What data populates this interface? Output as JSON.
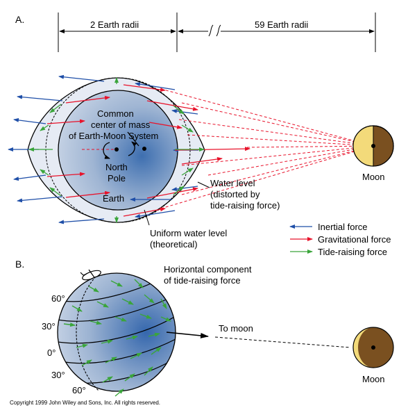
{
  "panel_a": {
    "label": "A.",
    "dim_earth": "2 Earth radii",
    "dim_moon": "59 Earth radii",
    "break_mark": "ʃ ʃ",
    "com_line1": "Common",
    "com_line2": "center of mass",
    "com_line3": "of Earth-Moon System",
    "north_line1": "North",
    "north_line2": "Pole",
    "earth": "Earth",
    "moon": "Moon",
    "water_line1": "Water level",
    "water_line2": "(distorted by",
    "water_line3": "tide-raising force)",
    "uniform_line1": "Uniform water level",
    "uniform_line2": "(theoretical)"
  },
  "legend": {
    "inertial": "Inertial force",
    "gravitational": "Gravitational force",
    "tide": "Tide-raising force"
  },
  "panel_b": {
    "label": "B.",
    "horiz_line1": "Horizontal component",
    "horiz_line2": "of tide-raising force",
    "to_moon": "To moon",
    "moon": "Moon",
    "lat_60n": "60°",
    "lat_30n": "30°",
    "lat_0": "0°",
    "lat_30s": "30°",
    "lat_60s": "60°"
  },
  "copyright": "Copyright 1999 John Wiley and Sons, Inc. All rights reserved.",
  "colors": {
    "inertial": "#1f4fa8",
    "gravitational": "#e8132b",
    "tide": "#3aa53a",
    "moon_light": "#f3da7a",
    "moon_dark": "#7a5020",
    "water": "#e6ebf4"
  }
}
